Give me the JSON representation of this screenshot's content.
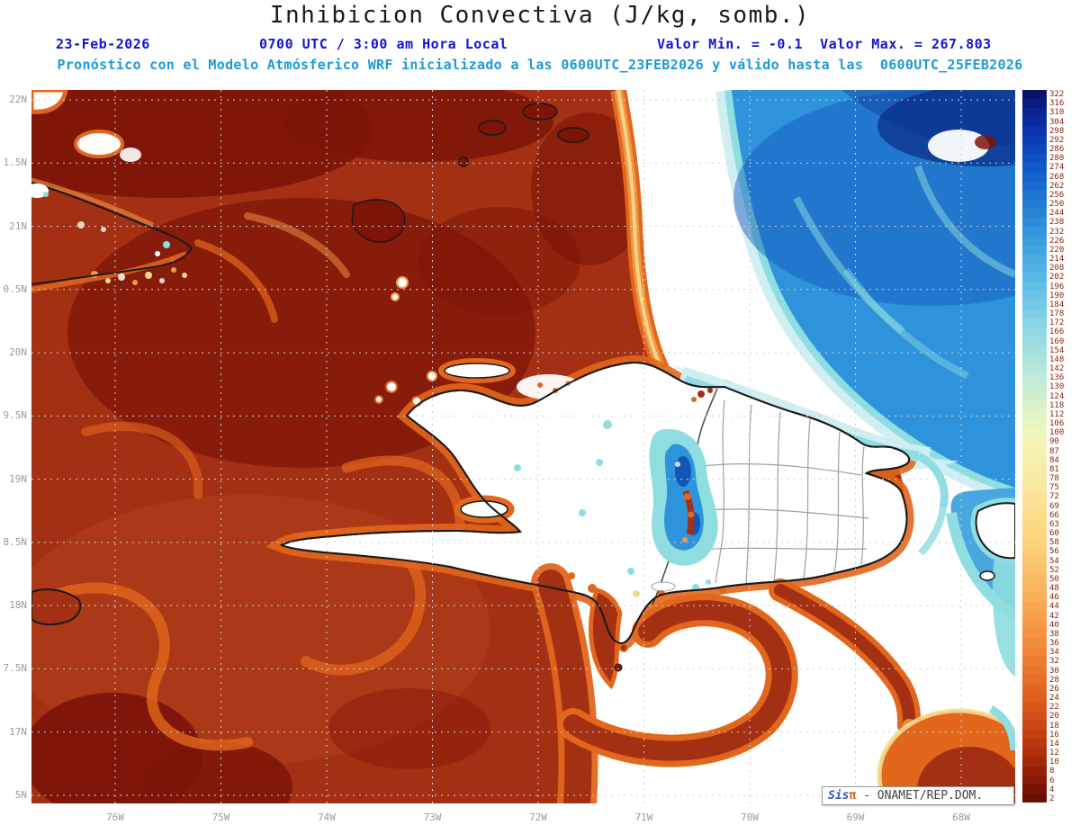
{
  "header": {
    "title": "Inhibicion Convectiva (J/kg, somb.)",
    "date": "23-Feb-2026",
    "time": "0700 UTC / 3:00 am Hora Local",
    "minmax": "Valor Min. = -0.1  Valor Max. = 267.803",
    "forecast_line": "Pronóstico con el Modelo Atmósferico WRF inicializado a las 0600UTC_23FEB2026 y válido hasta las  0600UTC_25FEB2026"
  },
  "map": {
    "lat_labels": [
      "22N",
      "1.5N",
      "21N",
      "0.5N",
      "20N",
      "9.5N",
      "19N",
      "8.5N",
      "18N",
      "7.5N",
      "17N",
      "5N"
    ],
    "lon_labels": [
      "76W",
      "75W",
      "74W",
      "73W",
      "72W",
      "71W",
      "70W",
      "69W",
      "68W"
    ]
  },
  "colorbar": {
    "unit": "J/kg",
    "labels": [
      322,
      316,
      310,
      304,
      298,
      292,
      286,
      280,
      274,
      268,
      262,
      256,
      250,
      244,
      238,
      232,
      226,
      220,
      214,
      208,
      202,
      196,
      190,
      184,
      178,
      172,
      166,
      160,
      154,
      148,
      142,
      136,
      130,
      124,
      118,
      112,
      106,
      100,
      90,
      87,
      84,
      81,
      78,
      75,
      72,
      69,
      66,
      63,
      60,
      58,
      56,
      54,
      52,
      50,
      48,
      46,
      44,
      42,
      40,
      38,
      36,
      34,
      32,
      30,
      28,
      26,
      24,
      22,
      20,
      18,
      16,
      14,
      12,
      10,
      8,
      6,
      4,
      2
    ],
    "stops": [
      [
        0.0,
        "#0a1066"
      ],
      [
        0.05,
        "#0a2fa8"
      ],
      [
        0.11,
        "#115ac8"
      ],
      [
        0.18,
        "#2a8ad8"
      ],
      [
        0.26,
        "#55b8e6"
      ],
      [
        0.33,
        "#8ad6e6"
      ],
      [
        0.4,
        "#bce9d8"
      ],
      [
        0.455,
        "#e2f3c4"
      ],
      [
        0.49,
        "#f4f6b8"
      ],
      [
        0.56,
        "#fbe79c"
      ],
      [
        0.63,
        "#fcd47c"
      ],
      [
        0.71,
        "#f8b058"
      ],
      [
        0.78,
        "#f18a38"
      ],
      [
        0.85,
        "#e0601f"
      ],
      [
        0.91,
        "#c03c10"
      ],
      [
        0.96,
        "#921d06"
      ],
      [
        1.0,
        "#5f0c02"
      ]
    ]
  },
  "watermark": {
    "brand_sis": "Sis",
    "brand_pi": "π",
    "org": " - ONAMET/REP.DOM."
  },
  "palette": {
    "field_red": "#a33012",
    "red_bright": "#b5431c",
    "maroon": "#7c1408",
    "orange": "#e2661c",
    "light_orange": "#f09a4a",
    "yellow": "#f6d98c",
    "cyan": "#8edde0",
    "pale_blue": "#cfeef2",
    "blue": "#2e93da",
    "blue_mid": "#4aa6de",
    "deep_blue": "#1256b8",
    "navy": "#0a2c86",
    "grid": "#cdd2d6",
    "coast": "#1a1a1a",
    "admin": "#9aa0a6",
    "label_gray": "#9a9a9a",
    "header_blue": "#1414cc",
    "header_cyan": "#1d9ad4",
    "colorbar_label": "#8b1e04",
    "watermark_blue": "#3355bb",
    "watermark_pi": "#e05a10",
    "watermark_gray": "#444444"
  }
}
